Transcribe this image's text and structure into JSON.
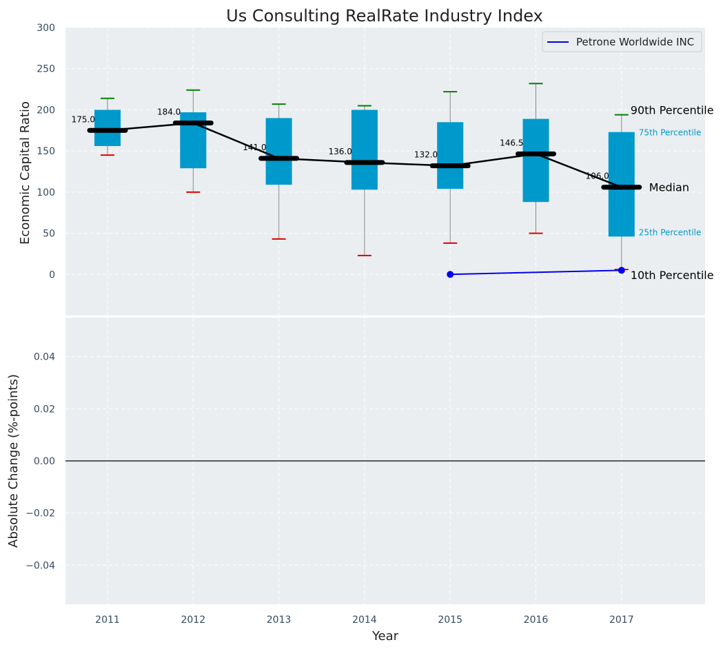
{
  "chart_data": {
    "type": "box",
    "title": "Us Consulting RealRate Industry Index",
    "xlabel": "Year",
    "categories": [
      "2011",
      "2012",
      "2013",
      "2014",
      "2015",
      "2016",
      "2017"
    ],
    "top_panel": {
      "ylabel": "Economic Capital Ratio",
      "ylim": [
        -50,
        300
      ],
      "yticks": [
        0,
        50,
        100,
        150,
        200,
        250,
        300
      ],
      "boxes": [
        {
          "year": "2011",
          "p10": 145,
          "p25": 156,
          "median": 175,
          "p75": 200,
          "p90": 214,
          "median_label": "175.0"
        },
        {
          "year": "2012",
          "p10": 100,
          "p25": 129,
          "median": 184,
          "p75": 197,
          "p90": 224,
          "median_label": "184.0"
        },
        {
          "year": "2013",
          "p10": 43,
          "p25": 109,
          "median": 141,
          "p75": 190,
          "p90": 207,
          "median_label": "141.0"
        },
        {
          "year": "2014",
          "p10": 23,
          "p25": 103,
          "median": 136,
          "p75": 200,
          "p90": 205,
          "median_label": "136.0"
        },
        {
          "year": "2015",
          "p10": 38,
          "p25": 104,
          "median": 132,
          "p75": 185,
          "p90": 222,
          "median_label": "132.0"
        },
        {
          "year": "2016",
          "p10": 50,
          "p25": 88,
          "median": 146.5,
          "p75": 189,
          "p90": 232,
          "median_label": "146.5"
        },
        {
          "year": "2017",
          "p10": 6,
          "p25": 46,
          "median": 106,
          "p75": 173,
          "p90": 194,
          "median_label": "106.0"
        }
      ],
      "series": [
        {
          "name": "Petrone Worldwide INC",
          "x": [
            "2015",
            "2017"
          ],
          "values": [
            0,
            5
          ],
          "color": "#0000ee"
        }
      ],
      "annotations": {
        "p90": "90th Percentile",
        "p75": "75th Percentile",
        "median": "Median",
        "p25": "25th Percentile",
        "p10": "10th Percentile"
      },
      "legend_position": "top-right"
    },
    "bottom_panel": {
      "ylabel": "Absolute Change (%-points)",
      "ylim": [
        -0.055,
        0.055
      ],
      "yticks": [
        "−0.04",
        "−0.02",
        "0.00",
        "0.02",
        "0.04"
      ],
      "ytick_values": [
        -0.04,
        -0.02,
        0,
        0.02,
        0.04
      ]
    },
    "colors": {
      "box": "#0099cc",
      "median_line": "#000000",
      "whisker_top": "#008000",
      "whisker_bottom": "#e00000",
      "panel_bg": "#eaeef0",
      "tick_text": "#34495e",
      "annotation_small": "#0099cc"
    },
    "grid": true
  }
}
